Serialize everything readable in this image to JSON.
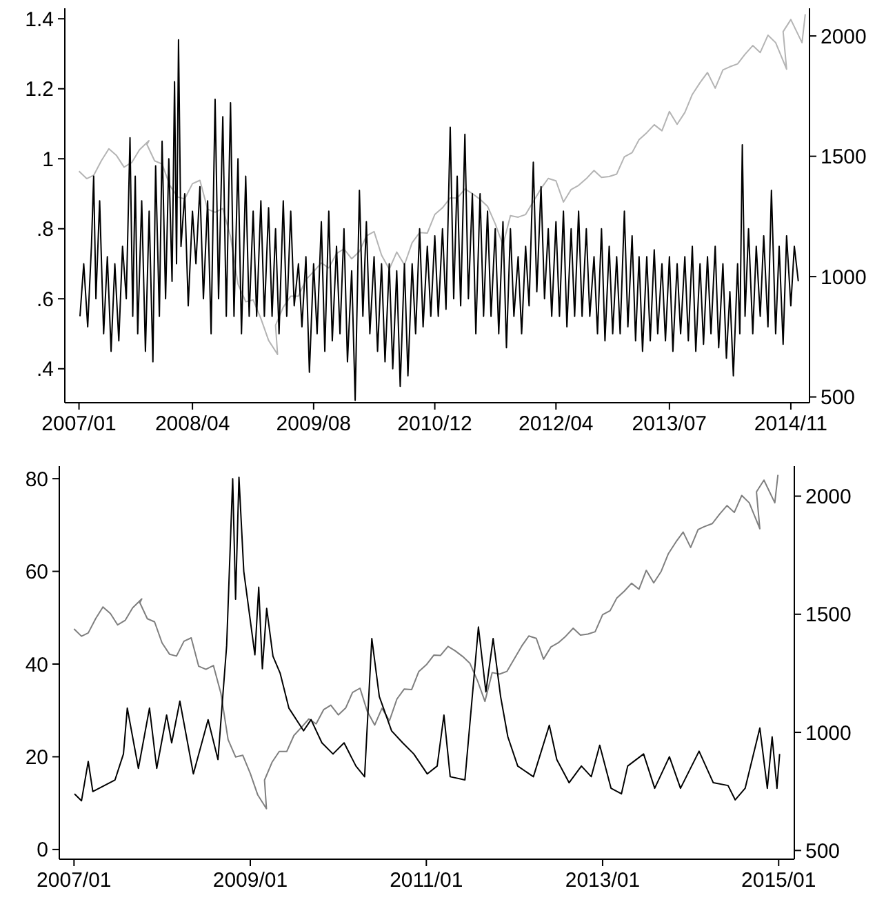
{
  "chart_data": [
    {
      "type": "line",
      "xlim": [
        "2006-11-05",
        "2015-01-15"
      ],
      "xticks": [
        {
          "value": "2007-01",
          "label": "2007/01"
        },
        {
          "value": "2008-04",
          "label": "2008/04"
        },
        {
          "value": "2009-08",
          "label": "2009/08"
        },
        {
          "value": "2010-12",
          "label": "2010/12"
        },
        {
          "value": "2012-04",
          "label": "2012/04"
        },
        {
          "value": "2013-07",
          "label": "2013/07"
        },
        {
          "value": "2014-11",
          "label": "2014/11"
        }
      ],
      "ylim": [
        0.303,
        1.43
      ],
      "yticks": [
        {
          "value": 0.4,
          "label": ".4"
        },
        {
          "value": 0.6,
          "label": ".6"
        },
        {
          "value": 0.8,
          "label": ".8"
        },
        1,
        {
          "value": 1.2,
          "label": "1.2"
        },
        {
          "value": 1.4,
          "label": "1.4"
        }
      ],
      "y2lim": [
        476,
        2115
      ],
      "y2ticks": [
        500,
        1000,
        1500,
        2000
      ],
      "series": [
        {
          "color": "#b4b4b4",
          "axis": "y2",
          "x": [
            "2007-01",
            "2007-02",
            "2007-03",
            "2007-04",
            "2007-05",
            "2007-06",
            "2007-07",
            "2007-08",
            "2007-09",
            "2007-10-09",
            "2007-10",
            "2007-11",
            "2007-12",
            "2008-01",
            "2008-02",
            "2008-03",
            "2008-04",
            "2008-05",
            "2008-06",
            "2008-07",
            "2008-08",
            "2008-09",
            "2008-10",
            "2008-11",
            "2008-12",
            "2009-01",
            "2009-02",
            "2009-03-09",
            "2009-03",
            "2009-04",
            "2009-05",
            "2009-06",
            "2009-07",
            "2009-08",
            "2009-09",
            "2009-10",
            "2009-11",
            "2009-12",
            "2010-01",
            "2010-02",
            "2010-03",
            "2010-04",
            "2010-05",
            "2010-06",
            "2010-07",
            "2010-08",
            "2010-09",
            "2010-10",
            "2010-11",
            "2010-12",
            "2011-01",
            "2011-02",
            "2011-03",
            "2011-04",
            "2011-05",
            "2011-06",
            "2011-07",
            "2011-08",
            "2011-09",
            "2011-10",
            "2011-11",
            "2011-12",
            "2012-01",
            "2012-02",
            "2012-03",
            "2012-04",
            "2012-05",
            "2012-06",
            "2012-07",
            "2012-08",
            "2012-09",
            "2012-10",
            "2012-11",
            "2012-12",
            "2013-01",
            "2013-02",
            "2013-03",
            "2013-04",
            "2013-05",
            "2013-06",
            "2013-07",
            "2013-08",
            "2013-09",
            "2013-10",
            "2013-11",
            "2013-12",
            "2014-01",
            "2014-02",
            "2014-03",
            "2014-04",
            "2014-05",
            "2014-06",
            "2014-07",
            "2014-08",
            "2014-09",
            "2014-10-15",
            "2014-10",
            "2014-11",
            "2014-12-16",
            "2014-12-29"
          ],
          "values": [
            1438,
            1407,
            1421,
            1482,
            1531,
            1503,
            1455,
            1474,
            1527,
            1565,
            1549,
            1481,
            1468,
            1379,
            1331,
            1323,
            1386,
            1400,
            1280,
            1267,
            1283,
            1166,
            969,
            896,
            903,
            826,
            735,
            677,
            798,
            873,
            919,
            919,
            987,
            1021,
            1057,
            1036,
            1096,
            1115,
            1074,
            1104,
            1169,
            1187,
            1089,
            1031,
            1102,
            1049,
            1141,
            1183,
            1181,
            1258,
            1286,
            1327,
            1326,
            1364,
            1345,
            1321,
            1292,
            1219,
            1131,
            1253,
            1247,
            1258,
            1312,
            1366,
            1408,
            1398,
            1310,
            1362,
            1379,
            1407,
            1441,
            1412,
            1416,
            1426,
            1498,
            1515,
            1569,
            1598,
            1631,
            1606,
            1686,
            1633,
            1682,
            1757,
            1806,
            1848,
            1783,
            1859,
            1872,
            1884,
            1924,
            1960,
            1931,
            2003,
            1972,
            1862,
            2018,
            2068,
            1972,
            2090
          ]
        },
        {
          "color": "#000000",
          "x": [
            "2007-01-05",
            "2007-01-20",
            "2007-02-05",
            "2007-02-20",
            "2007-03-01",
            "2007-03-10",
            "2007-03-25",
            "2007-04-10",
            "2007-04-25",
            "2007-05-10",
            "2007-05-25",
            "2007-06-10",
            "2007-06-25",
            "2007-07-10",
            "2007-07-25",
            "2007-08-05",
            "2007-08-15",
            "2007-08-25",
            "2007-09-10",
            "2007-09-25",
            "2007-10-10",
            "2007-10-25",
            "2007-11-05",
            "2007-11-20",
            "2007-12-01",
            "2007-12-15",
            "2007-12-28",
            "2008-01-10",
            "2008-01-20",
            "2008-01-28",
            "2008-02-05",
            "2008-02-15",
            "2008-03-01",
            "2008-03-15",
            "2008-04-01",
            "2008-04-15",
            "2008-05-01",
            "2008-05-15",
            "2008-06-01",
            "2008-06-15",
            "2008-07-01",
            "2008-07-15",
            "2008-08-01",
            "2008-08-15",
            "2008-09-01",
            "2008-09-15",
            "2008-10-01",
            "2008-10-15",
            "2008-11-01",
            "2008-11-15",
            "2008-12-01",
            "2008-12-15",
            "2009-01-01",
            "2009-01-15",
            "2009-02-01",
            "2009-02-15",
            "2009-03-01",
            "2009-03-15",
            "2009-04-01",
            "2009-04-15",
            "2009-05-01",
            "2009-05-15",
            "2009-06-01",
            "2009-06-15",
            "2009-07-01",
            "2009-07-15",
            "2009-08-01",
            "2009-08-15",
            "2009-09-01",
            "2009-09-15",
            "2009-10-01",
            "2009-10-15",
            "2009-11-01",
            "2009-11-15",
            "2009-12-01",
            "2009-12-15",
            "2010-01-01",
            "2010-01-15",
            "2010-02-01",
            "2010-02-15",
            "2010-03-01",
            "2010-03-15",
            "2010-04-01",
            "2010-04-15",
            "2010-05-01",
            "2010-05-15",
            "2010-06-01",
            "2010-06-15",
            "2010-07-01",
            "2010-07-15",
            "2010-08-01",
            "2010-08-15",
            "2010-09-01",
            "2010-09-15",
            "2010-10-01",
            "2010-10-15",
            "2010-11-01",
            "2010-11-15",
            "2010-12-01",
            "2010-12-15",
            "2011-01-01",
            "2011-01-15",
            "2011-02-01",
            "2011-02-15",
            "2011-03-01",
            "2011-03-15",
            "2011-04-01",
            "2011-04-15",
            "2011-05-01",
            "2011-05-15",
            "2011-06-01",
            "2011-06-15",
            "2011-07-01",
            "2011-07-15",
            "2011-08-01",
            "2011-08-15",
            "2011-09-01",
            "2011-09-15",
            "2011-10-01",
            "2011-10-15",
            "2011-11-01",
            "2011-11-15",
            "2011-12-01",
            "2011-12-15",
            "2012-01-01",
            "2012-01-15",
            "2012-02-01",
            "2012-02-15",
            "2012-03-01",
            "2012-03-15",
            "2012-04-01",
            "2012-04-15",
            "2012-05-01",
            "2012-05-15",
            "2012-06-01",
            "2012-06-15",
            "2012-07-01",
            "2012-07-15",
            "2012-08-01",
            "2012-08-15",
            "2012-09-01",
            "2012-09-15",
            "2012-10-01",
            "2012-10-15",
            "2012-11-01",
            "2012-11-15",
            "2012-12-01",
            "2012-12-15",
            "2013-01-01",
            "2013-01-15",
            "2013-02-01",
            "2013-02-15",
            "2013-03-01",
            "2013-03-15",
            "2013-04-01",
            "2013-04-15",
            "2013-05-01",
            "2013-05-15",
            "2013-06-01",
            "2013-06-15",
            "2013-07-01",
            "2013-07-15",
            "2013-08-01",
            "2013-08-15",
            "2013-09-01",
            "2013-09-15",
            "2013-10-01",
            "2013-10-15",
            "2013-11-01",
            "2013-11-15",
            "2013-12-01",
            "2013-12-15",
            "2014-01-01",
            "2014-01-15",
            "2014-02-01",
            "2014-02-15",
            "2014-03-01",
            "2014-03-15",
            "2014-04-01",
            "2014-04-10",
            "2014-04-20",
            "2014-05-01",
            "2014-05-15",
            "2014-06-01",
            "2014-06-15",
            "2014-07-01",
            "2014-07-15",
            "2014-08-01",
            "2014-08-15",
            "2014-09-01",
            "2014-09-15",
            "2014-10-01",
            "2014-10-15",
            "2014-11-01",
            "2014-11-15",
            "2014-12-01"
          ],
          "values": [
            0.55,
            0.7,
            0.52,
            0.75,
            0.95,
            0.6,
            0.88,
            0.5,
            0.72,
            0.45,
            0.7,
            0.48,
            0.75,
            0.6,
            1.06,
            0.55,
            0.95,
            0.5,
            0.88,
            0.45,
            0.85,
            0.42,
            0.98,
            0.55,
            1.05,
            0.6,
            1.0,
            0.65,
            1.22,
            0.7,
            1.34,
            0.75,
            0.9,
            0.58,
            0.85,
            0.7,
            0.92,
            0.6,
            0.88,
            0.5,
            1.17,
            0.6,
            1.12,
            0.55,
            1.16,
            0.55,
            1.0,
            0.5,
            0.95,
            0.55,
            0.85,
            0.55,
            0.88,
            0.55,
            0.86,
            0.55,
            0.8,
            0.5,
            0.88,
            0.55,
            0.85,
            0.58,
            0.7,
            0.52,
            0.72,
            0.39,
            0.7,
            0.5,
            0.82,
            0.45,
            0.85,
            0.48,
            0.75,
            0.5,
            0.8,
            0.42,
            0.68,
            0.31,
            0.91,
            0.55,
            0.82,
            0.5,
            0.72,
            0.45,
            0.7,
            0.42,
            0.7,
            0.4,
            0.68,
            0.35,
            0.7,
            0.38,
            0.7,
            0.5,
            0.8,
            0.52,
            0.75,
            0.55,
            0.78,
            0.55,
            0.8,
            0.57,
            1.09,
            0.6,
            0.95,
            0.58,
            1.07,
            0.6,
            0.9,
            0.5,
            0.9,
            0.55,
            0.85,
            0.55,
            0.8,
            0.5,
            0.82,
            0.46,
            0.8,
            0.55,
            0.72,
            0.5,
            0.75,
            0.58,
            0.99,
            0.62,
            0.92,
            0.6,
            0.8,
            0.55,
            0.82,
            0.55,
            0.85,
            0.52,
            0.8,
            0.55,
            0.85,
            0.55,
            0.8,
            0.55,
            0.72,
            0.5,
            0.8,
            0.48,
            0.75,
            0.5,
            0.72,
            0.5,
            0.85,
            0.52,
            0.78,
            0.48,
            0.72,
            0.45,
            0.72,
            0.48,
            0.74,
            0.5,
            0.7,
            0.48,
            0.72,
            0.45,
            0.7,
            0.5,
            0.72,
            0.48,
            0.75,
            0.45,
            0.7,
            0.47,
            0.72,
            0.5,
            0.75,
            0.46,
            0.7,
            0.43,
            0.62,
            0.38,
            0.7,
            0.5,
            1.04,
            0.55,
            0.8,
            0.5,
            0.75,
            0.55,
            0.78,
            0.52,
            0.91,
            0.5,
            0.75,
            0.47,
            0.78,
            0.58,
            0.75,
            0.65
          ]
        }
      ]
    },
    {
      "type": "line",
      "xlim": [
        "2006-11-01",
        "2015-03-07"
      ],
      "xticks": [
        {
          "value": "2007-01",
          "label": "2007/01"
        },
        {
          "value": "2009-01",
          "label": "2009/01"
        },
        {
          "value": "2011-01",
          "label": "2011/01"
        },
        {
          "value": "2013-01",
          "label": "2013/01"
        },
        {
          "value": "2015-01",
          "label": "2015/01"
        }
      ],
      "ylim": [
        -2.1,
        82.7
      ],
      "yticks": [
        0,
        20,
        40,
        60,
        80
      ],
      "y2lim": [
        463,
        2127
      ],
      "y2ticks": [
        500,
        1000,
        1500,
        2000
      ],
      "series": [
        {
          "color": "#7f7f7f",
          "axis": "y2",
          "x": [
            "2007-01",
            "2007-02",
            "2007-03",
            "2007-04",
            "2007-05",
            "2007-06",
            "2007-07",
            "2007-08",
            "2007-09",
            "2007-10-09",
            "2007-10",
            "2007-11",
            "2007-12",
            "2008-01",
            "2008-02",
            "2008-03",
            "2008-04",
            "2008-05",
            "2008-06",
            "2008-07",
            "2008-08",
            "2008-09",
            "2008-10",
            "2008-11",
            "2008-12",
            "2009-01",
            "2009-02",
            "2009-03-09",
            "2009-03",
            "2009-04",
            "2009-05",
            "2009-06",
            "2009-07",
            "2009-08",
            "2009-09",
            "2009-10",
            "2009-11",
            "2009-12",
            "2010-01",
            "2010-02",
            "2010-03",
            "2010-04",
            "2010-05",
            "2010-06",
            "2010-07",
            "2010-08",
            "2010-09",
            "2010-10",
            "2010-11",
            "2010-12",
            "2011-01",
            "2011-02",
            "2011-03",
            "2011-04",
            "2011-05",
            "2011-06",
            "2011-07",
            "2011-08",
            "2011-09",
            "2011-10",
            "2011-11",
            "2011-12",
            "2012-01",
            "2012-02",
            "2012-03",
            "2012-04",
            "2012-05",
            "2012-06",
            "2012-07",
            "2012-08",
            "2012-09",
            "2012-10",
            "2012-11",
            "2012-12",
            "2013-01",
            "2013-02",
            "2013-03",
            "2013-04",
            "2013-05",
            "2013-06",
            "2013-07",
            "2013-08",
            "2013-09",
            "2013-10",
            "2013-11",
            "2013-12",
            "2014-01",
            "2014-02",
            "2014-03",
            "2014-04",
            "2014-05",
            "2014-06",
            "2014-07",
            "2014-08",
            "2014-09",
            "2014-10-15",
            "2014-10",
            "2014-11",
            "2014-12-16",
            "2014-12-29"
          ],
          "values": [
            1438,
            1407,
            1421,
            1482,
            1531,
            1503,
            1455,
            1474,
            1527,
            1565,
            1549,
            1481,
            1468,
            1379,
            1331,
            1323,
            1386,
            1400,
            1280,
            1267,
            1283,
            1166,
            969,
            896,
            903,
            826,
            735,
            677,
            798,
            873,
            919,
            919,
            987,
            1021,
            1057,
            1036,
            1096,
            1115,
            1074,
            1104,
            1169,
            1187,
            1089,
            1031,
            1102,
            1049,
            1141,
            1183,
            1181,
            1258,
            1286,
            1327,
            1326,
            1364,
            1345,
            1321,
            1292,
            1219,
            1131,
            1253,
            1247,
            1258,
            1312,
            1366,
            1408,
            1398,
            1310,
            1362,
            1379,
            1407,
            1441,
            1412,
            1416,
            1426,
            1498,
            1515,
            1569,
            1598,
            1631,
            1606,
            1686,
            1633,
            1682,
            1757,
            1806,
            1848,
            1783,
            1859,
            1872,
            1884,
            1924,
            1960,
            1931,
            2003,
            1972,
            1862,
            2018,
            2068,
            1972,
            2090
          ]
        },
        {
          "color": "#000000",
          "x": [
            "2007-01-03",
            "2007-02-01",
            "2007-03-01",
            "2007-03-20",
            "2007-06-20",
            "2007-07-25",
            "2007-08-10",
            "2007-09-25",
            "2007-11-10",
            "2007-12-10",
            "2008-01-20",
            "2008-02-10",
            "2008-03-15",
            "2008-05-10",
            "2008-07-10",
            "2008-08-20",
            "2008-09-25",
            "2008-10-20",
            "2008-11-01",
            "2008-11-15",
            "2008-12-05",
            "2009-01-20",
            "2009-02-05",
            "2009-02-20",
            "2009-03-10",
            "2009-04-05",
            "2009-05-05",
            "2009-06-10",
            "2009-08-10",
            "2009-09-10",
            "2009-10-25",
            "2009-12-10",
            "2010-01-25",
            "2010-03-15",
            "2010-04-20",
            "2010-05-20",
            "2010-06-20",
            "2010-08-10",
            "2010-09-25",
            "2010-11-10",
            "2011-01-05",
            "2011-02-15",
            "2011-03-15",
            "2011-04-10",
            "2011-06-10",
            "2011-08-05",
            "2011-09-05",
            "2011-10-05",
            "2011-11-05",
            "2011-12-05",
            "2012-01-15",
            "2012-03-20",
            "2012-05-25",
            "2012-06-25",
            "2012-08-15",
            "2012-10-05",
            "2012-11-15",
            "2012-12-20",
            "2013-02-05",
            "2013-03-20",
            "2013-04-15",
            "2013-06-20",
            "2013-08-05",
            "2013-10-05",
            "2013-11-20",
            "2014-02-05",
            "2014-04-05",
            "2014-06-05",
            "2014-07-05",
            "2014-08-15",
            "2014-10-15",
            "2014-11-15",
            "2014-12-05",
            "2014-12-25",
            "2015-01-05"
          ],
          "values": [
            12,
            10.5,
            19,
            12.5,
            15,
            20.6,
            30.5,
            17.5,
            30.5,
            17.5,
            29,
            23,
            32,
            16.3,
            28,
            19.4,
            44,
            80,
            54,
            80.3,
            60,
            42,
            56.6,
            39,
            52,
            41.7,
            38,
            30.5,
            25.6,
            28,
            23,
            20.6,
            23,
            18,
            15.7,
            45.5,
            33,
            25.6,
            23,
            20.6,
            16.3,
            18,
            29,
            15.7,
            15,
            48,
            34,
            45.5,
            33,
            24.3,
            18,
            15.7,
            26.8,
            19.4,
            14.4,
            18,
            15.7,
            22.5,
            13.2,
            12,
            18,
            20.6,
            13.2,
            20,
            13.2,
            21.2,
            14.4,
            13.8,
            10.7,
            13.2,
            26.2,
            13.2,
            24.3,
            13.2,
            20.6
          ]
        }
      ]
    }
  ]
}
